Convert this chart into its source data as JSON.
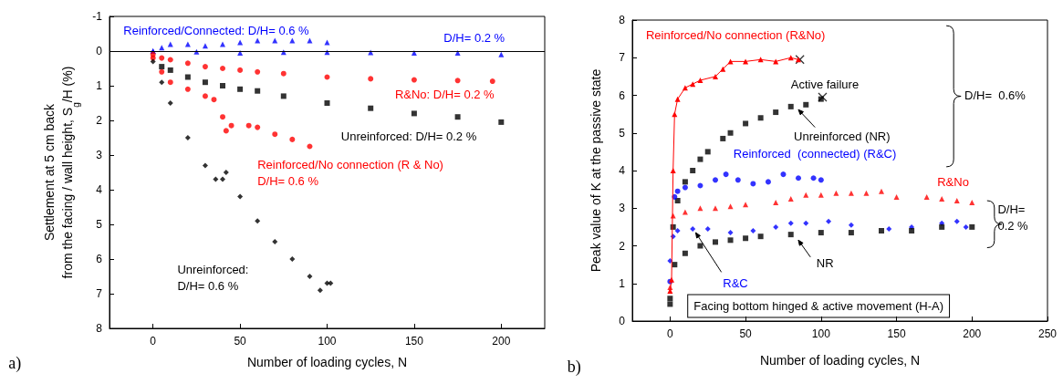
{
  "chart_data": [
    {
      "type": "scatter",
      "xlabel": "Number of loading cycles, N",
      "ylabel": "Settlement at 5 cm back\nfrom the facing / wall height, S$_{g}$/H (%)",
      "xlim": [
        -25,
        225
      ],
      "xticks": [
        0,
        50,
        100,
        150,
        200
      ],
      "ylim": [
        8,
        -1
      ],
      "yticks": [
        -1,
        0,
        1,
        2,
        3,
        4,
        5,
        6,
        7,
        8
      ],
      "ref_lines": [
        {
          "axis": "y",
          "value": 0,
          "color": "#000000"
        }
      ],
      "annotations": [
        "a)"
      ],
      "series": [
        {
          "name": "Reinforced/Connected: D/H= 0.6 %",
          "color": "#0000ff",
          "marker": "triangle",
          "x": [
            0,
            5,
            10,
            20,
            30,
            40,
            50,
            60,
            70,
            80,
            90,
            100
          ],
          "values": [
            0,
            -0.1,
            -0.2,
            -0.2,
            -0.15,
            -0.2,
            -0.25,
            -0.3,
            -0.3,
            -0.3,
            -0.3,
            -0.25
          ]
        },
        {
          "name": "D/H= 0.2 %",
          "color": "#0000ff",
          "marker": "triangle",
          "x": [
            0,
            25,
            50,
            75,
            100,
            125,
            150,
            175,
            200
          ],
          "values": [
            0,
            0.02,
            0.05,
            0.03,
            0.03,
            0.04,
            0.05,
            0.05,
            0.1
          ]
        },
        {
          "name": "R&No: D/H= 0.2 %",
          "color": "#ff0000",
          "marker": "circle",
          "x": [
            0,
            5,
            10,
            20,
            30,
            40,
            50,
            60,
            75,
            100,
            125,
            150,
            175,
            195
          ],
          "values": [
            0.1,
            0.2,
            0.25,
            0.35,
            0.45,
            0.5,
            0.55,
            0.6,
            0.65,
            0.75,
            0.8,
            0.83,
            0.85,
            0.87
          ]
        },
        {
          "name": "Unreinforced: D/H= 0.2 %",
          "color": "#000000",
          "marker": "square",
          "x": [
            5,
            10,
            20,
            30,
            40,
            50,
            60,
            75,
            100,
            125,
            150,
            175,
            200
          ],
          "values": [
            0.45,
            0.55,
            0.75,
            0.9,
            1.0,
            1.1,
            1.15,
            1.3,
            1.5,
            1.65,
            1.8,
            1.9,
            2.05
          ]
        },
        {
          "name": "Reinforced/No connection (R & No)\nD/H= 0.6 %",
          "color": "#ff0000",
          "marker": "circle",
          "x": [
            0,
            5,
            10,
            20,
            30,
            35,
            40,
            42,
            45,
            55,
            60,
            70,
            80,
            90
          ],
          "values": [
            0.2,
            0.6,
            0.9,
            1.1,
            1.3,
            1.4,
            1.9,
            2.3,
            2.15,
            2.15,
            2.2,
            2.4,
            2.55,
            2.75
          ]
        },
        {
          "name": "Unreinforced:\nD/H= 0.6 %",
          "color": "#000000",
          "marker": "diamond",
          "x": [
            0,
            5,
            10,
            20,
            30,
            36,
            40,
            42,
            50,
            60,
            70,
            80,
            90,
            96,
            100,
            102
          ],
          "values": [
            0.3,
            0.9,
            1.5,
            2.5,
            3.3,
            3.7,
            3.7,
            3.5,
            4.2,
            4.9,
            5.5,
            6.0,
            6.5,
            6.9,
            6.7,
            6.7
          ]
        }
      ]
    },
    {
      "type": "scatter",
      "xlabel": "Number of loading cycles, N",
      "ylabel": "Peak value of K at the passive state",
      "xlim": [
        -25,
        250
      ],
      "xticks": [
        0,
        50,
        100,
        150,
        200,
        250
      ],
      "ylim": [
        0,
        8
      ],
      "yticks": [
        0,
        1,
        2,
        3,
        4,
        5,
        6,
        7,
        8
      ],
      "annotations": [
        "Active failure",
        "D/H=  0.6%",
        "D/H=\n0.2 %",
        "Facing bottom hinged & active movement (H-A)",
        "b)"
      ],
      "series": [
        {
          "name": "Reinforced/No connection (R&No)",
          "type": "line",
          "color": "#ff0000",
          "marker": "triangle",
          "x": [
            0,
            1,
            2,
            3,
            5,
            10,
            15,
            20,
            30,
            35,
            40,
            50,
            60,
            70,
            80,
            85
          ],
          "values": [
            0.8,
            1.1,
            4,
            5.5,
            5.9,
            6.2,
            6.3,
            6.4,
            6.5,
            6.7,
            6.9,
            6.9,
            6.95,
            6.9,
            7.0,
            6.95
          ]
        },
        {
          "name": "Unreinforced (NR)",
          "color": "#000000",
          "marker": "square",
          "x": [
            0,
            2,
            5,
            10,
            15,
            20,
            25,
            35,
            40,
            50,
            60,
            70,
            80,
            90,
            100
          ],
          "values": [
            0.6,
            2.5,
            3.2,
            3.7,
            4.0,
            4.3,
            4.5,
            4.85,
            5.0,
            5.25,
            5.4,
            5.55,
            5.7,
            5.75,
            5.9
          ]
        },
        {
          "name": "Reinforced  (connected) (R&C)",
          "color": "#0000ff",
          "marker": "circle",
          "x": [
            0,
            3,
            5,
            10,
            20,
            30,
            37,
            45,
            55,
            65,
            75,
            85,
            95,
            100
          ],
          "values": [
            1.05,
            3.3,
            3.45,
            3.55,
            3.6,
            3.75,
            3.9,
            3.75,
            3.65,
            3.7,
            3.9,
            3.8,
            3.8,
            3.75
          ]
        },
        {
          "name": "R&No",
          "color": "#ff0000",
          "marker": "triangle",
          "x": [
            0,
            2,
            10,
            20,
            30,
            40,
            50,
            70,
            80,
            90,
            100,
            110,
            120,
            130,
            140,
            150,
            170,
            180,
            190,
            200
          ],
          "values": [
            0.9,
            2.8,
            2.9,
            3.0,
            3.0,
            3.05,
            3.1,
            3.15,
            3.25,
            3.35,
            3.35,
            3.4,
            3.4,
            3.4,
            3.45,
            3.3,
            3.3,
            3.25,
            3.2,
            3.15
          ]
        },
        {
          "name": "R&C",
          "color": "#0000ff",
          "marker": "diamond",
          "x": [
            0,
            2,
            5,
            15,
            25,
            40,
            55,
            70,
            80,
            90,
            105,
            120,
            145,
            160,
            180,
            190,
            196
          ],
          "values": [
            1.6,
            2.25,
            2.4,
            2.45,
            2.45,
            2.35,
            2.4,
            2.5,
            2.6,
            2.6,
            2.65,
            2.55,
            2.45,
            2.5,
            2.6,
            2.65,
            2.5
          ]
        },
        {
          "name": "NR",
          "color": "#000000",
          "marker": "square",
          "x": [
            0,
            3,
            10,
            20,
            30,
            40,
            50,
            60,
            80,
            100,
            120,
            140,
            160,
            180,
            200
          ],
          "values": [
            0.45,
            1.5,
            1.8,
            2.0,
            2.1,
            2.15,
            2.2,
            2.25,
            2.3,
            2.35,
            2.35,
            2.4,
            2.4,
            2.5,
            2.5
          ]
        },
        {
          "color": "#000000",
          "marker": "cross",
          "x": [
            86,
            101
          ],
          "values": [
            6.95,
            5.95
          ]
        }
      ]
    }
  ]
}
